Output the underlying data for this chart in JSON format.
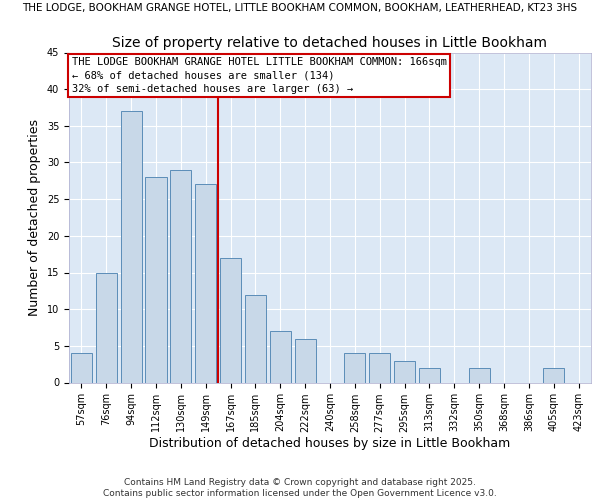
{
  "title": "Size of property relative to detached houses in Little Bookham",
  "xlabel": "Distribution of detached houses by size in Little Bookham",
  "ylabel": "Number of detached properties",
  "suptitle": "THE LODGE, BOOKHAM GRANGE HOTEL, LITTLE BOOKHAM COMMON, BOOKHAM, LEATHERHEAD, KT23 3HS",
  "bar_labels": [
    "57sqm",
    "76sqm",
    "94sqm",
    "112sqm",
    "130sqm",
    "149sqm",
    "167sqm",
    "185sqm",
    "204sqm",
    "222sqm",
    "240sqm",
    "258sqm",
    "277sqm",
    "295sqm",
    "313sqm",
    "332sqm",
    "350sqm",
    "368sqm",
    "386sqm",
    "405sqm",
    "423sqm"
  ],
  "bar_values": [
    4,
    15,
    37,
    28,
    29,
    27,
    17,
    12,
    7,
    6,
    0,
    4,
    4,
    3,
    2,
    0,
    2,
    0,
    0,
    2,
    0
  ],
  "bar_color": "#c8d8e8",
  "bar_edge_color": "#5b8db8",
  "vline_color": "#cc0000",
  "vline_position": 6,
  "ylim": [
    0,
    45
  ],
  "annotation_line1": "THE LODGE BOOKHAM GRANGE HOTEL LITTLE BOOKHAM COMMON: 166sqm",
  "annotation_line2": "← 68% of detached houses are smaller (134)",
  "annotation_line3": "32% of semi-detached houses are larger (63) →",
  "footer_text": "Contains HM Land Registry data © Crown copyright and database right 2025.\nContains public sector information licensed under the Open Government Licence v3.0.",
  "background_color": "#dce8f5",
  "grid_color": "#ffffff",
  "title_fontsize": 10,
  "suptitle_fontsize": 7.5,
  "axis_label_fontsize": 9,
  "tick_fontsize": 7,
  "annotation_fontsize": 7.5,
  "footer_fontsize": 6.5
}
